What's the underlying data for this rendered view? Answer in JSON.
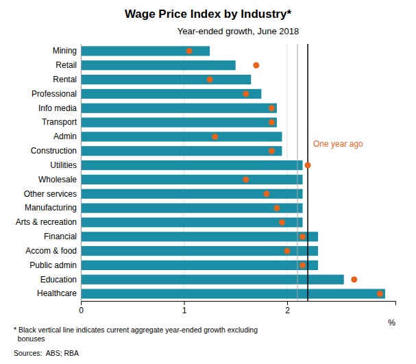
{
  "chart_data": {
    "type": "bar",
    "orientation": "horizontal",
    "title": "Wage Price Index by Industry*",
    "subtitle": "Year-ended growth, June 2018",
    "xlabel": "%",
    "categories": [
      "Mining",
      "Retail",
      "Rental",
      "Professional",
      "Info media",
      "Transport",
      "Admin",
      "Construction",
      "Utilities",
      "Wholesale",
      "Other services",
      "Manufacturing",
      "Arts & recreation",
      "Financial",
      "Accom & food",
      "Public admin",
      "Education",
      "Healthcare"
    ],
    "series": [
      {
        "type": "bar",
        "color": "#1B8EA6",
        "values": [
          1.25,
          1.5,
          1.65,
          1.75,
          1.9,
          1.9,
          1.95,
          1.95,
          2.15,
          2.15,
          2.15,
          2.15,
          2.15,
          2.3,
          2.3,
          2.3,
          2.55,
          2.95
        ]
      },
      {
        "type": "scatter",
        "marker": "circle",
        "color": "#E8631A",
        "values": [
          1.05,
          1.7,
          1.25,
          1.6,
          1.85,
          1.85,
          1.3,
          1.85,
          2.2,
          1.6,
          1.8,
          1.9,
          1.95,
          2.15,
          2.0,
          2.15,
          2.65,
          2.9
        ]
      }
    ],
    "reference_lines": [
      {
        "value": 2.1,
        "color": "#AAAAAA"
      },
      {
        "value": 2.2,
        "color": "#000000"
      }
    ],
    "annotations": [
      {
        "text": "One year ago",
        "color": "#E8631A",
        "category": "Construction"
      }
    ],
    "notes": [
      "* Black vertical line indicates current aggregate year-ended growth excluding",
      "  bonuses"
    ],
    "source": "Sources:  ABS; RBA",
    "xlim": [
      0,
      3.05
    ],
    "xticks": [
      0,
      1,
      2
    ],
    "grid": true
  }
}
